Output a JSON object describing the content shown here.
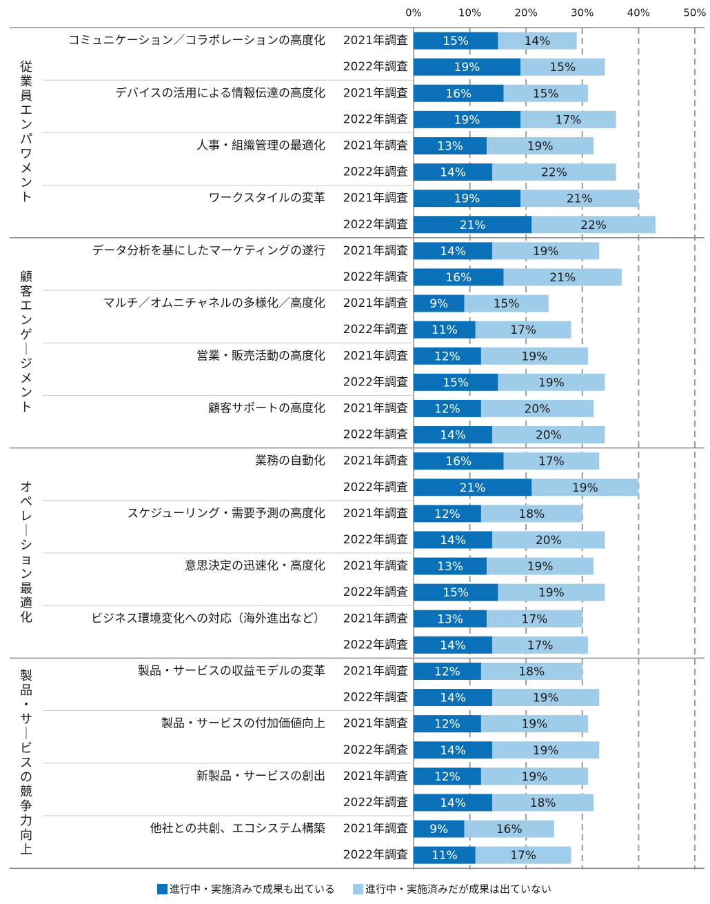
{
  "chart_data": {
    "type": "bar",
    "stacked": true,
    "orientation": "horizontal",
    "xlim": [
      0,
      50
    ],
    "x_ticks": [
      "0%",
      "10%",
      "20%",
      "30%",
      "40%",
      "50%"
    ],
    "legend_position": "bottom",
    "colors": {
      "s1": "#0a70b8",
      "s2": "#9fcde9",
      "grid": "#9a9a9a",
      "separator": "#c8c8c8"
    },
    "series": [
      {
        "name": "進行中・実施済みで成果も出ている",
        "color": "#0a70b8"
      },
      {
        "name": "進行中・実施済みだが成果は出ていない",
        "color": "#9fcde9"
      }
    ],
    "groups": [
      {
        "name": "従業員エンパワメント",
        "items": [
          {
            "label": "コミュニケーション／コラボレーションの高度化",
            "rows": [
              {
                "survey": "2021年調査",
                "values": [
                  15,
                  14
                ],
                "labels": [
                  "15%",
                  "14%"
                ]
              },
              {
                "survey": "2022年調査",
                "values": [
                  19,
                  15
                ],
                "labels": [
                  "19%",
                  "15%"
                ]
              }
            ]
          },
          {
            "label": "デバイスの活用による情報伝達の高度化",
            "rows": [
              {
                "survey": "2021年調査",
                "values": [
                  16,
                  15
                ],
                "labels": [
                  "16%",
                  "15%"
                ]
              },
              {
                "survey": "2022年調査",
                "values": [
                  19,
                  17
                ],
                "labels": [
                  "19%",
                  "17%"
                ]
              }
            ]
          },
          {
            "label": "人事・組織管理の最適化",
            "rows": [
              {
                "survey": "2021年調査",
                "values": [
                  13,
                  19
                ],
                "labels": [
                  "13%",
                  "19%"
                ]
              },
              {
                "survey": "2022年調査",
                "values": [
                  14,
                  22
                ],
                "labels": [
                  "14%",
                  "22%"
                ]
              }
            ]
          },
          {
            "label": "ワークスタイルの変革",
            "rows": [
              {
                "survey": "2021年調査",
                "values": [
                  19,
                  21
                ],
                "labels": [
                  "19%",
                  "21%"
                ]
              },
              {
                "survey": "2022年調査",
                "values": [
                  21,
                  22
                ],
                "labels": [
                  "21%",
                  "22%"
                ]
              }
            ]
          }
        ]
      },
      {
        "name": "顧客エンゲージメント",
        "items": [
          {
            "label": "データ分析を基にしたマーケティングの遂行",
            "rows": [
              {
                "survey": "2021年調査",
                "values": [
                  14,
                  19
                ],
                "labels": [
                  "14%",
                  "19%"
                ]
              },
              {
                "survey": "2022年調査",
                "values": [
                  16,
                  21
                ],
                "labels": [
                  "16%",
                  "21%"
                ]
              }
            ]
          },
          {
            "label": "マルチ／オムニチャネルの多様化／高度化",
            "rows": [
              {
                "survey": "2021年調査",
                "values": [
                  9,
                  15
                ],
                "labels": [
                  "9%",
                  "15%"
                ]
              },
              {
                "survey": "2022年調査",
                "values": [
                  11,
                  17
                ],
                "labels": [
                  "11%",
                  "17%"
                ]
              }
            ]
          },
          {
            "label": "営業・販売活動の高度化",
            "rows": [
              {
                "survey": "2021年調査",
                "values": [
                  12,
                  19
                ],
                "labels": [
                  "12%",
                  "19%"
                ]
              },
              {
                "survey": "2022年調査",
                "values": [
                  15,
                  19
                ],
                "labels": [
                  "15%",
                  "19%"
                ]
              }
            ]
          },
          {
            "label": "顧客サポートの高度化",
            "rows": [
              {
                "survey": "2021年調査",
                "values": [
                  12,
                  20
                ],
                "labels": [
                  "12%",
                  "20%"
                ]
              },
              {
                "survey": "2022年調査",
                "values": [
                  14,
                  20
                ],
                "labels": [
                  "14%",
                  "20%"
                ]
              }
            ]
          }
        ]
      },
      {
        "name": "オペレーション最適化",
        "items": [
          {
            "label": "業務の自動化",
            "rows": [
              {
                "survey": "2021年調査",
                "values": [
                  16,
                  17
                ],
                "labels": [
                  "16%",
                  "17%"
                ]
              },
              {
                "survey": "2022年調査",
                "values": [
                  21,
                  19
                ],
                "labels": [
                  "21%",
                  "19%"
                ]
              }
            ]
          },
          {
            "label": "スケジューリング・需要予測の高度化",
            "rows": [
              {
                "survey": "2021年調査",
                "values": [
                  12,
                  18
                ],
                "labels": [
                  "12%",
                  "18%"
                ]
              },
              {
                "survey": "2022年調査",
                "values": [
                  14,
                  20
                ],
                "labels": [
                  "14%",
                  "20%"
                ]
              }
            ]
          },
          {
            "label": "意思決定の迅速化・高度化",
            "rows": [
              {
                "survey": "2021年調査",
                "values": [
                  13,
                  19
                ],
                "labels": [
                  "13%",
                  "19%"
                ]
              },
              {
                "survey": "2022年調査",
                "values": [
                  15,
                  19
                ],
                "labels": [
                  "15%",
                  "19%"
                ]
              }
            ]
          },
          {
            "label": "ビジネス環境変化への対応（海外進出など）",
            "rows": [
              {
                "survey": "2021年調査",
                "values": [
                  13,
                  17
                ],
                "labels": [
                  "13%",
                  "17%"
                ]
              },
              {
                "survey": "2022年調査",
                "values": [
                  14,
                  17
                ],
                "labels": [
                  "14%",
                  "17%"
                ]
              }
            ]
          }
        ]
      },
      {
        "name": "製品・サービスの競争力向上",
        "items": [
          {
            "label": "製品・サービスの収益モデルの変革",
            "rows": [
              {
                "survey": "2021年調査",
                "values": [
                  12,
                  18
                ],
                "labels": [
                  "12%",
                  "18%"
                ]
              },
              {
                "survey": "2022年調査",
                "values": [
                  14,
                  19
                ],
                "labels": [
                  "14%",
                  "19%"
                ]
              }
            ]
          },
          {
            "label": "製品・サービスの付加価値向上",
            "rows": [
              {
                "survey": "2021年調査",
                "values": [
                  12,
                  19
                ],
                "labels": [
                  "12%",
                  "19%"
                ]
              },
              {
                "survey": "2022年調査",
                "values": [
                  14,
                  19
                ],
                "labels": [
                  "14%",
                  "19%"
                ]
              }
            ]
          },
          {
            "label": "新製品・サービスの創出",
            "rows": [
              {
                "survey": "2021年調査",
                "values": [
                  12,
                  19
                ],
                "labels": [
                  "12%",
                  "19%"
                ]
              },
              {
                "survey": "2022年調査",
                "values": [
                  14,
                  18
                ],
                "labels": [
                  "14%",
                  "18%"
                ]
              }
            ]
          },
          {
            "label": "他社との共創、エコシステム構築",
            "rows": [
              {
                "survey": "2021年調査",
                "values": [
                  9,
                  16
                ],
                "labels": [
                  "9%",
                  "16%"
                ]
              },
              {
                "survey": "2022年調査",
                "values": [
                  11,
                  17
                ],
                "labels": [
                  "11%",
                  "17%"
                ]
              }
            ]
          }
        ]
      }
    ]
  }
}
